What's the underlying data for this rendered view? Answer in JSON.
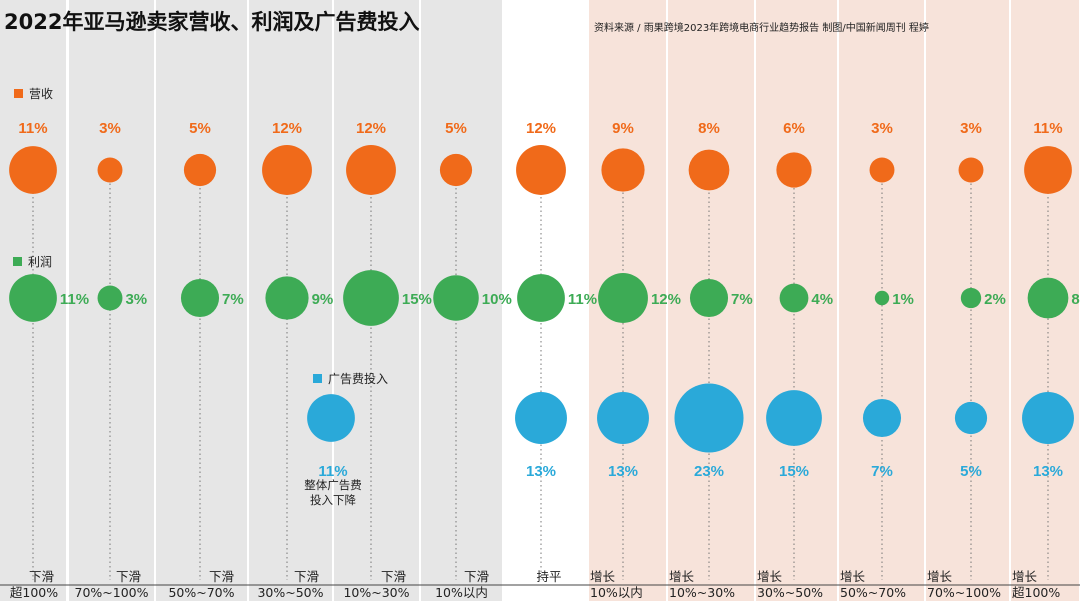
{
  "title": "2022年亚马逊卖家营收、利润及广告费投入",
  "source": "资料来源 / 雨果跨境2023年跨境电商行业趋势报告    制图/中国新闻周刊 程婷",
  "chart_data": {
    "type": "bubble",
    "title": "2022年亚马逊卖家营收、利润及广告费投入",
    "unit": "%",
    "categories": [
      {
        "trend": "下滑",
        "range": "超100%",
        "group": "decline"
      },
      {
        "trend": "下滑",
        "range": "70%~100%",
        "group": "decline"
      },
      {
        "trend": "下滑",
        "range": "50%~70%",
        "group": "decline"
      },
      {
        "trend": "下滑",
        "range": "30%~50%",
        "group": "decline"
      },
      {
        "trend": "下滑",
        "range": "10%~30%",
        "group": "decline"
      },
      {
        "trend": "下滑",
        "range": "10%以内",
        "group": "decline"
      },
      {
        "trend": "持平",
        "range": "",
        "group": "flat"
      },
      {
        "trend": "增长",
        "range": "10%以内",
        "group": "growth"
      },
      {
        "trend": "增长",
        "range": "10%~30%",
        "group": "growth"
      },
      {
        "trend": "增长",
        "range": "30%~50%",
        "group": "growth"
      },
      {
        "trend": "增长",
        "range": "50%~70%",
        "group": "growth"
      },
      {
        "trend": "增长",
        "range": "70%~100%",
        "group": "growth"
      },
      {
        "trend": "增长",
        "range": "超100%",
        "group": "growth"
      }
    ],
    "series": [
      {
        "name": "营收",
        "color": "#f06a1a",
        "values": [
          11,
          3,
          5,
          12,
          12,
          5,
          12,
          9,
          8,
          6,
          3,
          3,
          11
        ]
      },
      {
        "name": "利润",
        "color": "#3dab55",
        "values": [
          11,
          3,
          7,
          9,
          15,
          10,
          11,
          12,
          7,
          4,
          1,
          2,
          8
        ]
      },
      {
        "name": "广告费投入",
        "color": "#2aa9d9",
        "values": [
          null,
          null,
          null,
          null,
          null,
          null,
          13,
          13,
          23,
          15,
          7,
          5,
          13
        ],
        "combined_decline": {
          "value": 11,
          "label_line1": "整体广告费",
          "label_line2": "投入下降"
        }
      }
    ],
    "background_colors": {
      "decline": "#e6e6e6",
      "flat": "#ffffff",
      "growth": "#f7e3da"
    }
  }
}
